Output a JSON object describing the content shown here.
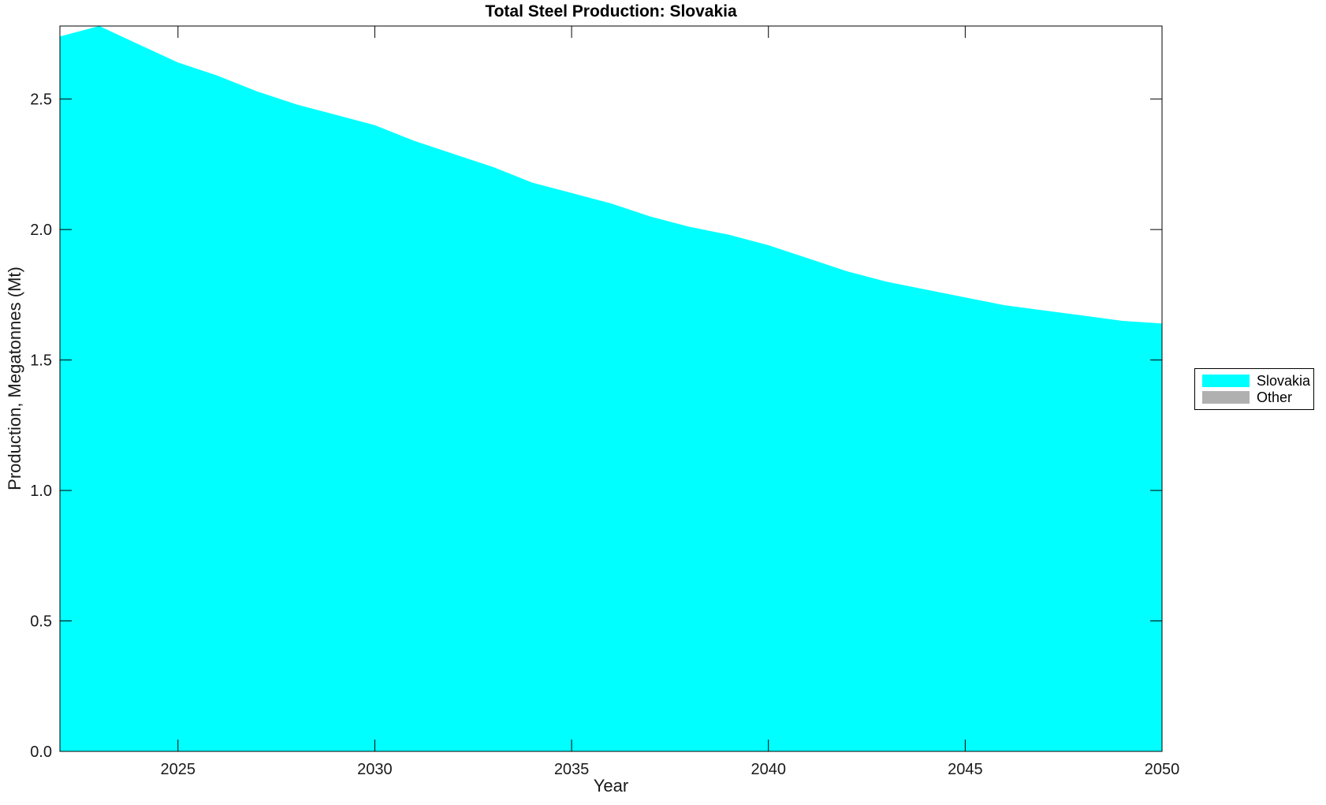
{
  "title": "Total Steel Production: Slovakia",
  "chart_data": {
    "type": "area",
    "title": "Total Steel Production: Slovakia",
    "xlabel": "Year",
    "ylabel": "Production, Megatonnes (Mt)",
    "xlim": [
      2022,
      2050
    ],
    "ylim": [
      0,
      2.78
    ],
    "grid": false,
    "legend_position": "outside-right",
    "x_ticks": [
      2025,
      2030,
      2035,
      2040,
      2045,
      2050
    ],
    "y_ticks": [
      0,
      0.5,
      1.0,
      1.5,
      2.0,
      2.5
    ],
    "y_tick_labels": [
      "0.0",
      "0.5",
      "1.0",
      "1.5",
      "2.0",
      "2.5"
    ],
    "x": [
      2022,
      2023,
      2024,
      2025,
      2026,
      2027,
      2028,
      2029,
      2030,
      2031,
      2032,
      2033,
      2034,
      2035,
      2036,
      2037,
      2038,
      2039,
      2040,
      2041,
      2042,
      2043,
      2044,
      2045,
      2046,
      2047,
      2048,
      2049,
      2050
    ],
    "series": [
      {
        "name": "Slovakia",
        "color": "#00FFFF",
        "values": [
          2.74,
          2.78,
          2.71,
          2.64,
          2.59,
          2.53,
          2.48,
          2.44,
          2.4,
          2.34,
          2.29,
          2.24,
          2.18,
          2.14,
          2.1,
          2.05,
          2.01,
          1.98,
          1.94,
          1.89,
          1.84,
          1.8,
          1.77,
          1.74,
          1.71,
          1.69,
          1.67,
          1.65,
          1.64
        ]
      },
      {
        "name": "Other",
        "color": "#B0B0B0",
        "values": [
          0,
          0,
          0,
          0,
          0,
          0,
          0,
          0,
          0,
          0,
          0,
          0,
          0,
          0,
          0,
          0,
          0,
          0,
          0,
          0,
          0,
          0,
          0,
          0,
          0,
          0,
          0,
          0,
          0
        ]
      }
    ]
  }
}
